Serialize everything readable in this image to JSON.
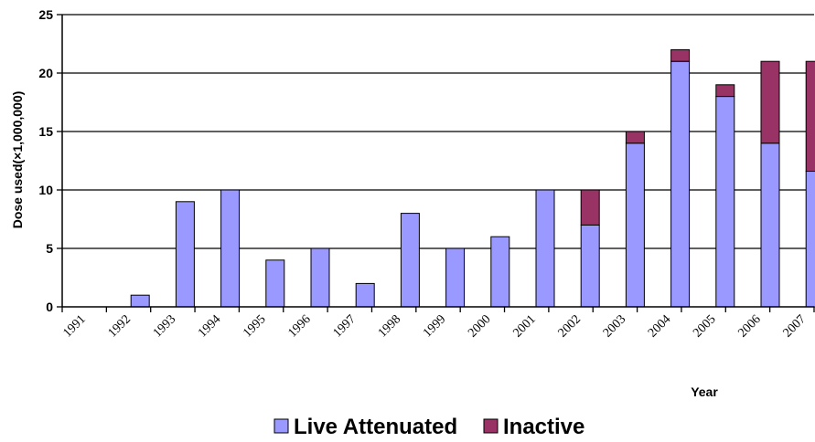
{
  "chart_data": {
    "type": "bar",
    "stacked": true,
    "title": "",
    "xlabel": "Year",
    "ylabel": "Dose used(×1,000,000)",
    "ylim": [
      0,
      25
    ],
    "yticks": [
      0,
      5,
      10,
      15,
      20,
      25
    ],
    "grid": true,
    "legend_position": "bottom",
    "categories": [
      "1991",
      "1992",
      "1993",
      "1994",
      "1995",
      "1996",
      "1997",
      "1998",
      "1999",
      "2000",
      "2001",
      "2002",
      "2003",
      "2004",
      "2005",
      "2006",
      "2007"
    ],
    "series": [
      {
        "name": "Live Attenuated",
        "color": "#9999FF",
        "values": [
          0,
          1,
          9,
          10,
          4,
          5,
          2,
          8,
          5,
          6,
          10,
          7,
          14,
          21,
          18,
          14,
          11.6
        ]
      },
      {
        "name": "Inactive",
        "color": "#993366",
        "values": [
          0,
          0,
          0,
          0,
          0,
          0,
          0,
          0,
          0,
          0,
          0,
          3,
          1,
          1,
          1,
          7,
          9.4
        ]
      }
    ]
  }
}
